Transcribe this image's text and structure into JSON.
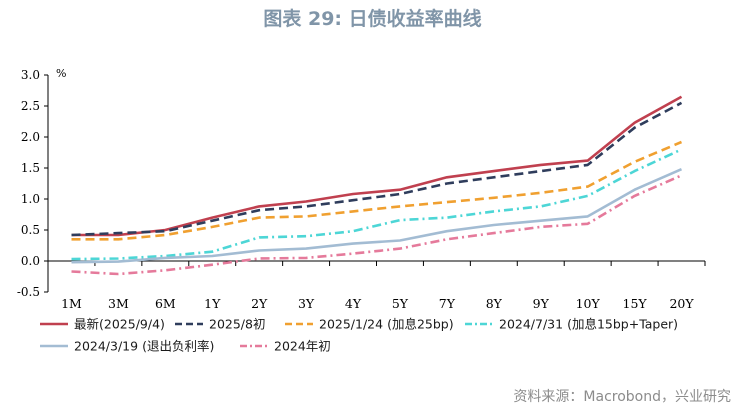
{
  "title": "图表 29: 日债收益率曲线",
  "source": "资料来源：Macrobond，兴业研究",
  "chart_data": {
    "type": "line",
    "title": "图表 29: 日债收益率曲线",
    "ylabel": "%",
    "xlabel": "",
    "ylim": [
      -0.5,
      3.0
    ],
    "yticks": [
      -0.5,
      0.0,
      0.5,
      1.0,
      1.5,
      2.0,
      2.5,
      3.0
    ],
    "ytick_labels": [
      "-0.5",
      "0.0",
      "0.5",
      "1.0",
      "1.5",
      "2.0",
      "2.5",
      "3.0"
    ],
    "categories": [
      "1M",
      "3M",
      "6M",
      "1Y",
      "2Y",
      "3Y",
      "4Y",
      "5Y",
      "7Y",
      "8Y",
      "9Y",
      "10Y",
      "15Y",
      "20Y"
    ],
    "grid": false,
    "legend_position": "bottom",
    "series": [
      {
        "name": "最新(2025/9/4)",
        "color": "#c0404f",
        "dash": "solid",
        "values": [
          0.42,
          0.42,
          0.5,
          0.7,
          0.88,
          0.96,
          1.08,
          1.15,
          1.35,
          1.45,
          1.55,
          1.62,
          2.23,
          2.65
        ]
      },
      {
        "name": "2025/8初",
        "color": "#2f3d5c",
        "dash": "dash",
        "values": [
          0.42,
          0.45,
          0.48,
          0.65,
          0.82,
          0.88,
          0.98,
          1.08,
          1.25,
          1.35,
          1.45,
          1.55,
          2.15,
          2.55
        ]
      },
      {
        "name": "2025/1/24 (加息25bp)",
        "color": "#f0a030",
        "dash": "dash",
        "values": [
          0.35,
          0.35,
          0.42,
          0.55,
          0.7,
          0.72,
          0.8,
          0.88,
          0.95,
          1.02,
          1.1,
          1.2,
          1.6,
          1.92
        ]
      },
      {
        "name": "2024/7/31 (加息15bp+Taper)",
        "color": "#4dd6d6",
        "dash": "dashdot",
        "values": [
          0.03,
          0.04,
          0.08,
          0.15,
          0.38,
          0.4,
          0.48,
          0.66,
          0.7,
          0.8,
          0.88,
          1.05,
          1.45,
          1.8
        ]
      },
      {
        "name": "2024/3/19 (退出负利率)",
        "color": "#a3bcd3",
        "dash": "solid",
        "values": [
          -0.02,
          -0.01,
          0.05,
          0.08,
          0.17,
          0.2,
          0.28,
          0.33,
          0.48,
          0.58,
          0.65,
          0.72,
          1.15,
          1.48
        ]
      },
      {
        "name": "2024年初",
        "color": "#e57a9b",
        "dash": "dashdot",
        "values": [
          -0.17,
          -0.21,
          -0.15,
          -0.06,
          0.04,
          0.05,
          0.12,
          0.2,
          0.35,
          0.45,
          0.55,
          0.6,
          1.05,
          1.38
        ]
      }
    ]
  }
}
